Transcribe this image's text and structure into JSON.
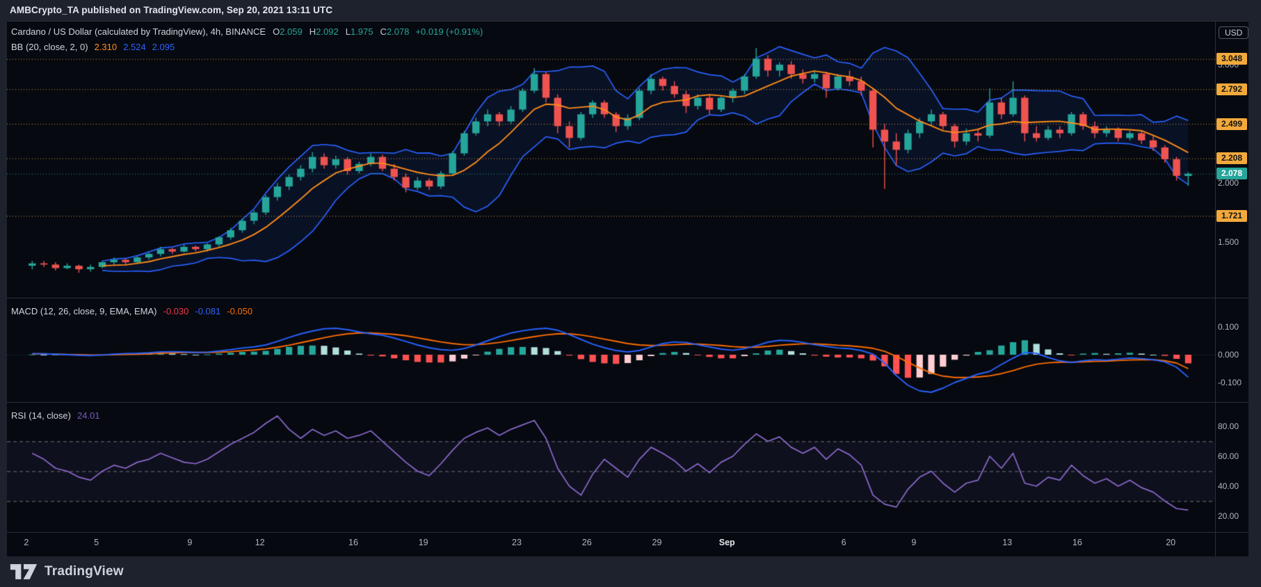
{
  "header_bar": {
    "text": "AMBCrypto_TA published on TradingView.com, Sep 20, 2021 13:11 UTC"
  },
  "footer": {
    "brand": "TradingView"
  },
  "symbol_legend": {
    "title": "Cardano / US Dollar (calculated by TradingView), 4h, BINANCE",
    "ohlc": [
      {
        "label": "O",
        "value": "2.059"
      },
      {
        "label": "H",
        "value": "2.092"
      },
      {
        "label": "L",
        "value": "1.975"
      },
      {
        "label": "C",
        "value": "2.078"
      }
    ],
    "change": "+0.019 (+0.91%)"
  },
  "bb_legend": {
    "title": "BB (20, close, 2, 0)",
    "values": [
      {
        "text": "2.310",
        "color": "#ff8d1a"
      },
      {
        "text": "2.524",
        "color": "#2d62ff"
      },
      {
        "text": "2.095",
        "color": "#2d62ff"
      }
    ]
  },
  "macd_legend": {
    "title": "MACD (12, 26, close, 9, EMA, EMA)",
    "values": [
      {
        "text": "-0.030",
        "color": "#f23645"
      },
      {
        "text": "-0.081",
        "color": "#2d62ff"
      },
      {
        "text": "-0.050",
        "color": "#ff6d00"
      }
    ]
  },
  "rsi_legend": {
    "title": "RSI (14, close)",
    "value": "24.01",
    "value_color": "#7e57c2"
  },
  "price_axis": {
    "currency_button": "USD",
    "plain_labels": [
      {
        "text": "3.000",
        "value": 3.0
      },
      {
        "text": "2.000",
        "value": 2.0
      },
      {
        "text": "1.500",
        "value": 1.5
      }
    ],
    "level_labels": [
      {
        "text": "3.048",
        "value": 3.048
      },
      {
        "text": "2.792",
        "value": 2.792
      },
      {
        "text": "2.499",
        "value": 2.499
      },
      {
        "text": "2.208",
        "value": 2.208
      },
      {
        "text": "1.721",
        "value": 1.721
      }
    ],
    "last_price": {
      "text": "2.078",
      "value": 2.078
    }
  },
  "macd_axis": [
    {
      "text": "0.100",
      "value": 0.1
    },
    {
      "text": "0.000",
      "value": 0.0
    },
    {
      "text": "-0.100",
      "value": -0.1
    }
  ],
  "rsi_axis": [
    {
      "text": "80.00",
      "value": 80
    },
    {
      "text": "60.00",
      "value": 60
    },
    {
      "text": "40.00",
      "value": 40
    },
    {
      "text": "20.00",
      "value": 20
    }
  ],
  "time_axis": {
    "ticks": [
      {
        "label": "2",
        "day": 0
      },
      {
        "label": "5",
        "day": 3
      },
      {
        "label": "9",
        "day": 7
      },
      {
        "label": "12",
        "day": 10
      },
      {
        "label": "16",
        "day": 14
      },
      {
        "label": "19",
        "day": 17
      },
      {
        "label": "23",
        "day": 21
      },
      {
        "label": "26",
        "day": 24
      },
      {
        "label": "29",
        "day": 27
      },
      {
        "label": "Sep",
        "day": 30,
        "major": true
      },
      {
        "label": "6",
        "day": 35
      },
      {
        "label": "9",
        "day": 38
      },
      {
        "label": "13",
        "day": 42
      },
      {
        "label": "16",
        "day": 45
      },
      {
        "label": "20",
        "day": 49
      }
    ]
  },
  "chart_data": {
    "type": "candlestick",
    "title": "Cardano / US Dollar, 4h, BINANCE",
    "date_span": "Aug 2 2021 - Sep 20 2021",
    "price_range_visible": [
      1.03,
      3.37
    ],
    "macd_range_visible": [
      -0.17,
      0.205
    ],
    "rsi_range_visible": [
      9.3,
      96.3
    ],
    "days_visible": [
      -0.83,
      50.9
    ],
    "samples_per_day": 2,
    "first_sample_day_offset": 0.25,
    "support_resistance_levels": [
      3.048,
      2.792,
      2.499,
      2.208,
      1.721
    ],
    "last_price": 2.078,
    "rsi_guides": [
      70,
      50,
      30
    ],
    "candles_ohlc": [
      [
        1.3,
        1.34,
        1.27,
        1.32
      ],
      [
        1.32,
        1.34,
        1.29,
        1.31
      ],
      [
        1.31,
        1.33,
        1.26,
        1.28
      ],
      [
        1.28,
        1.32,
        1.27,
        1.3
      ],
      [
        1.3,
        1.31,
        1.24,
        1.27
      ],
      [
        1.27,
        1.31,
        1.25,
        1.29
      ],
      [
        1.29,
        1.34,
        1.28,
        1.33
      ],
      [
        1.33,
        1.37,
        1.31,
        1.35
      ],
      [
        1.35,
        1.36,
        1.31,
        1.33
      ],
      [
        1.33,
        1.38,
        1.32,
        1.37
      ],
      [
        1.37,
        1.41,
        1.35,
        1.4
      ],
      [
        1.4,
        1.46,
        1.38,
        1.44
      ],
      [
        1.44,
        1.45,
        1.4,
        1.42
      ],
      [
        1.42,
        1.48,
        1.41,
        1.46
      ],
      [
        1.46,
        1.47,
        1.42,
        1.44
      ],
      [
        1.44,
        1.49,
        1.42,
        1.48
      ],
      [
        1.48,
        1.55,
        1.46,
        1.54
      ],
      [
        1.54,
        1.62,
        1.52,
        1.6
      ],
      [
        1.6,
        1.7,
        1.58,
        1.68
      ],
      [
        1.68,
        1.77,
        1.65,
        1.75
      ],
      [
        1.75,
        1.9,
        1.73,
        1.88
      ],
      [
        1.88,
        2.0,
        1.85,
        1.97
      ],
      [
        1.97,
        2.07,
        1.94,
        2.05
      ],
      [
        2.05,
        2.15,
        2.02,
        2.12
      ],
      [
        2.12,
        2.26,
        2.09,
        2.22
      ],
      [
        2.22,
        2.25,
        2.12,
        2.15
      ],
      [
        2.15,
        2.23,
        2.12,
        2.2
      ],
      [
        2.2,
        2.22,
        2.07,
        2.1
      ],
      [
        2.1,
        2.18,
        2.08,
        2.16
      ],
      [
        2.16,
        2.25,
        2.14,
        2.22
      ],
      [
        2.22,
        2.24,
        2.1,
        2.12
      ],
      [
        2.12,
        2.16,
        2.02,
        2.05
      ],
      [
        2.05,
        2.08,
        1.92,
        1.96
      ],
      [
        1.96,
        2.05,
        1.94,
        2.02
      ],
      [
        2.02,
        2.04,
        1.94,
        1.97
      ],
      [
        1.97,
        2.1,
        1.95,
        2.08
      ],
      [
        2.08,
        2.27,
        2.06,
        2.25
      ],
      [
        2.25,
        2.44,
        2.23,
        2.42
      ],
      [
        2.42,
        2.55,
        2.4,
        2.52
      ],
      [
        2.52,
        2.62,
        2.48,
        2.58
      ],
      [
        2.58,
        2.6,
        2.48,
        2.52
      ],
      [
        2.52,
        2.65,
        2.5,
        2.62
      ],
      [
        2.62,
        2.8,
        2.6,
        2.78
      ],
      [
        2.78,
        2.97,
        2.76,
        2.92
      ],
      [
        2.92,
        2.94,
        2.68,
        2.72
      ],
      [
        2.72,
        2.75,
        2.42,
        2.48
      ],
      [
        2.48,
        2.52,
        2.3,
        2.38
      ],
      [
        2.38,
        2.6,
        2.36,
        2.58
      ],
      [
        2.58,
        2.7,
        2.55,
        2.68
      ],
      [
        2.68,
        2.7,
        2.55,
        2.58
      ],
      [
        2.58,
        2.6,
        2.43,
        2.48
      ],
      [
        2.48,
        2.58,
        2.45,
        2.55
      ],
      [
        2.55,
        2.8,
        2.53,
        2.78
      ],
      [
        2.78,
        2.92,
        2.75,
        2.88
      ],
      [
        2.88,
        2.9,
        2.78,
        2.82
      ],
      [
        2.82,
        2.86,
        2.72,
        2.75
      ],
      [
        2.75,
        2.78,
        2.59,
        2.65
      ],
      [
        2.65,
        2.75,
        2.62,
        2.72
      ],
      [
        2.72,
        2.74,
        2.58,
        2.62
      ],
      [
        2.62,
        2.74,
        2.6,
        2.72
      ],
      [
        2.72,
        2.8,
        2.68,
        2.78
      ],
      [
        2.78,
        2.92,
        2.75,
        2.9
      ],
      [
        2.9,
        3.14,
        2.88,
        3.05
      ],
      [
        3.05,
        3.08,
        2.9,
        2.95
      ],
      [
        2.95,
        3.02,
        2.9,
        3.0
      ],
      [
        3.0,
        3.03,
        2.88,
        2.92
      ],
      [
        2.92,
        2.96,
        2.84,
        2.88
      ],
      [
        2.88,
        2.95,
        2.85,
        2.92
      ],
      [
        2.92,
        2.94,
        2.72,
        2.8
      ],
      [
        2.8,
        2.92,
        2.78,
        2.9
      ],
      [
        2.9,
        2.95,
        2.82,
        2.86
      ],
      [
        2.86,
        2.9,
        2.74,
        2.78
      ],
      [
        2.78,
        2.8,
        2.3,
        2.45
      ],
      [
        2.45,
        2.5,
        1.95,
        2.35
      ],
      [
        2.35,
        2.42,
        2.15,
        2.28
      ],
      [
        2.28,
        2.45,
        2.25,
        2.42
      ],
      [
        2.42,
        2.55,
        2.38,
        2.52
      ],
      [
        2.52,
        2.62,
        2.48,
        2.58
      ],
      [
        2.58,
        2.6,
        2.45,
        2.48
      ],
      [
        2.48,
        2.5,
        2.3,
        2.35
      ],
      [
        2.35,
        2.46,
        2.32,
        2.42
      ],
      [
        2.42,
        2.46,
        2.35,
        2.4
      ],
      [
        2.4,
        2.8,
        2.38,
        2.68
      ],
      [
        2.68,
        2.72,
        2.54,
        2.58
      ],
      [
        2.58,
        2.86,
        2.56,
        2.72
      ],
      [
        2.72,
        2.74,
        2.35,
        2.42
      ],
      [
        2.42,
        2.48,
        2.35,
        2.38
      ],
      [
        2.38,
        2.48,
        2.36,
        2.45
      ],
      [
        2.45,
        2.48,
        2.38,
        2.42
      ],
      [
        2.42,
        2.6,
        2.4,
        2.58
      ],
      [
        2.58,
        2.6,
        2.45,
        2.48
      ],
      [
        2.48,
        2.52,
        2.38,
        2.42
      ],
      [
        2.42,
        2.48,
        2.39,
        2.45
      ],
      [
        2.45,
        2.47,
        2.35,
        2.38
      ],
      [
        2.38,
        2.44,
        2.36,
        2.42
      ],
      [
        2.42,
        2.44,
        2.33,
        2.36
      ],
      [
        2.36,
        2.4,
        2.27,
        2.3
      ],
      [
        2.3,
        2.32,
        2.17,
        2.2
      ],
      [
        2.2,
        2.22,
        2.02,
        2.06
      ],
      [
        2.059,
        2.092,
        1.975,
        2.078
      ]
    ],
    "macd_line": [
      0.004,
      0.003,
      0.002,
      0.0,
      -0.002,
      -0.003,
      -0.001,
      0.002,
      0.004,
      0.005,
      0.007,
      0.01,
      0.011,
      0.01,
      0.008,
      0.009,
      0.013,
      0.018,
      0.024,
      0.028,
      0.035,
      0.048,
      0.062,
      0.075,
      0.085,
      0.093,
      0.095,
      0.09,
      0.082,
      0.075,
      0.07,
      0.06,
      0.048,
      0.035,
      0.025,
      0.018,
      0.016,
      0.022,
      0.035,
      0.05,
      0.065,
      0.078,
      0.086,
      0.092,
      0.095,
      0.088,
      0.072,
      0.055,
      0.038,
      0.025,
      0.015,
      0.01,
      0.015,
      0.028,
      0.04,
      0.046,
      0.044,
      0.036,
      0.028,
      0.02,
      0.016,
      0.022,
      0.032,
      0.045,
      0.052,
      0.05,
      0.044,
      0.036,
      0.03,
      0.024,
      0.022,
      0.015,
      0.002,
      -0.03,
      -0.075,
      -0.11,
      -0.13,
      -0.135,
      -0.12,
      -0.1,
      -0.085,
      -0.07,
      -0.06,
      -0.035,
      -0.012,
      0.008,
      0.005,
      -0.01,
      -0.022,
      -0.028,
      -0.022,
      -0.018,
      -0.02,
      -0.016,
      -0.012,
      -0.014,
      -0.018,
      -0.026,
      -0.045,
      -0.081
    ],
    "macd_signal": [
      0.003,
      0.003,
      0.002,
      0.001,
      0.0,
      -0.001,
      -0.001,
      0.0,
      0.001,
      0.002,
      0.003,
      0.005,
      0.007,
      0.008,
      0.008,
      0.008,
      0.009,
      0.011,
      0.014,
      0.017,
      0.021,
      0.027,
      0.034,
      0.043,
      0.052,
      0.061,
      0.069,
      0.075,
      0.078,
      0.078,
      0.076,
      0.073,
      0.068,
      0.061,
      0.053,
      0.046,
      0.04,
      0.036,
      0.036,
      0.039,
      0.044,
      0.051,
      0.058,
      0.065,
      0.071,
      0.075,
      0.075,
      0.071,
      0.064,
      0.056,
      0.048,
      0.04,
      0.035,
      0.033,
      0.034,
      0.036,
      0.038,
      0.038,
      0.036,
      0.033,
      0.029,
      0.027,
      0.027,
      0.03,
      0.034,
      0.037,
      0.039,
      0.039,
      0.037,
      0.034,
      0.032,
      0.028,
      0.023,
      0.012,
      -0.006,
      -0.027,
      -0.048,
      -0.066,
      -0.077,
      -0.082,
      -0.082,
      -0.08,
      -0.076,
      -0.068,
      -0.057,
      -0.044,
      -0.034,
      -0.029,
      -0.027,
      -0.027,
      -0.026,
      -0.024,
      -0.023,
      -0.021,
      -0.019,
      -0.018,
      -0.018,
      -0.022,
      -0.03,
      -0.05
    ],
    "rsi_line": [
      62,
      58,
      52,
      50,
      46,
      44,
      50,
      54,
      52,
      56,
      58,
      62,
      59,
      56,
      55,
      58,
      63,
      68,
      72,
      76,
      82,
      87,
      78,
      72,
      78,
      74,
      77,
      72,
      74,
      77,
      70,
      63,
      56,
      50,
      47,
      55,
      64,
      72,
      76,
      79,
      74,
      78,
      81,
      84,
      72,
      52,
      40,
      34,
      48,
      58,
      52,
      46,
      58,
      66,
      62,
      57,
      50,
      55,
      49,
      56,
      60,
      68,
      75,
      70,
      73,
      66,
      62,
      66,
      58,
      65,
      61,
      54,
      34,
      28,
      26,
      38,
      46,
      50,
      42,
      36,
      42,
      44,
      60,
      52,
      62,
      42,
      40,
      46,
      44,
      54,
      47,
      42,
      45,
      40,
      44,
      39,
      36,
      30,
      25,
      24.01
    ],
    "colors": {
      "candle_up": "#26a69a",
      "candle_down": "#ef5350",
      "bb_band": "#2962ff",
      "bb_basis": "#ff8d1a",
      "macd_line": "#2962ff",
      "macd_signal": "#ff6d00",
      "hist_pos_grow": "#26a69a",
      "hist_pos_fall": "#b2dfdb",
      "hist_neg_grow": "#ff5252",
      "hist_neg_fall": "#ffcdd2",
      "rsi_line": "#8c6bce",
      "level_line": "#d8a33d",
      "last_price_line": "#26a69a"
    }
  }
}
